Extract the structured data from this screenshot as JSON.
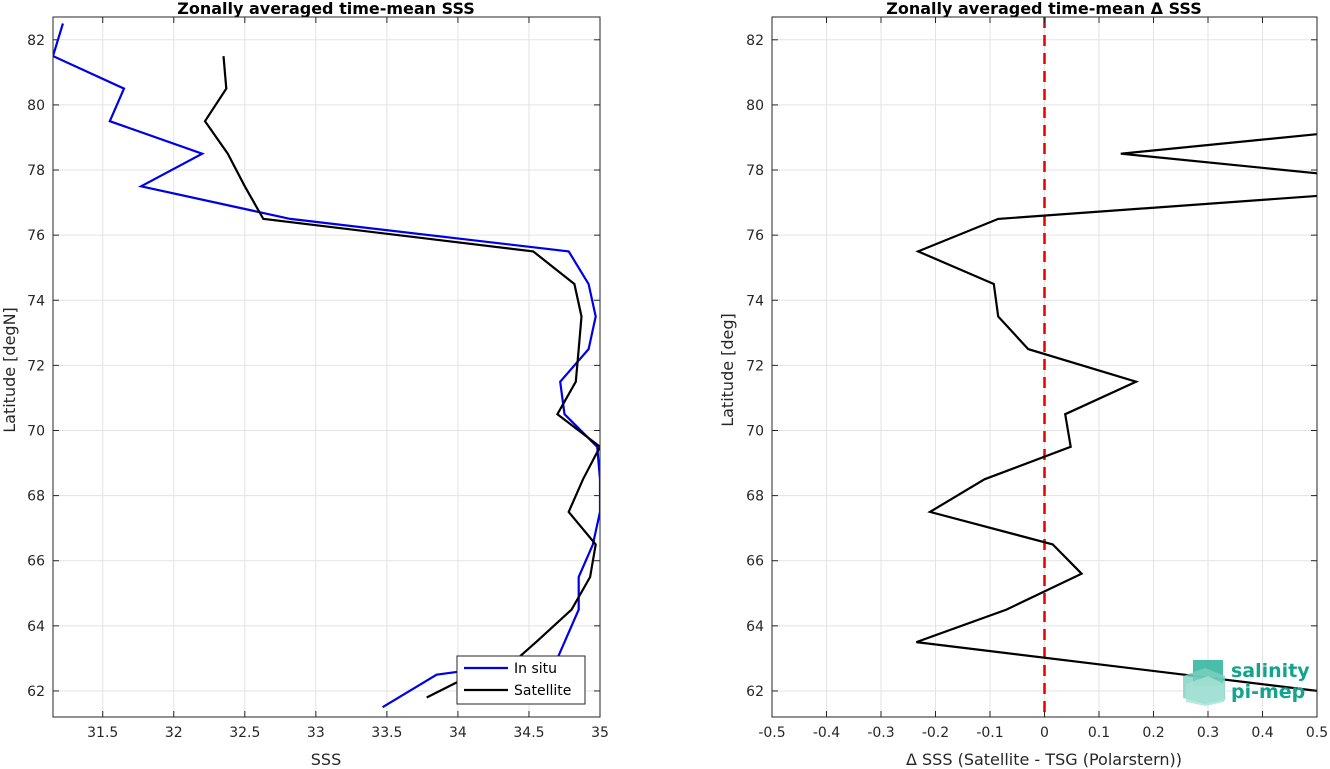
{
  "chart_data": [
    {
      "type": "line",
      "title": "Zonally averaged time-mean SSS",
      "xlabel": "SSS",
      "ylabel": "Latitude [degN]",
      "xlim": [
        31.15,
        35.0
      ],
      "ylim": [
        61.2,
        82.7
      ],
      "xticks": [
        "31.5",
        "32",
        "32.5",
        "33",
        "33.5",
        "34",
        "34.5",
        "35"
      ],
      "yticks": [
        "62",
        "64",
        "66",
        "68",
        "70",
        "72",
        "74",
        "76",
        "78",
        "80",
        "82"
      ],
      "grid": true,
      "legend": "bottom-right",
      "series": [
        {
          "name": "In situ",
          "color": "#0000e6",
          "points": [
            [
              33.47,
              61.5
            ],
            [
              33.85,
              62.5
            ],
            [
              34.7,
              63.0
            ],
            [
              34.85,
              64.5
            ],
            [
              34.85,
              65.5
            ],
            [
              34.95,
              66.5
            ],
            [
              35.0,
              67.5
            ],
            [
              35.0,
              68.5
            ],
            [
              34.98,
              69.5
            ],
            [
              34.75,
              70.5
            ],
            [
              34.72,
              71.5
            ],
            [
              34.92,
              72.5
            ],
            [
              34.97,
              73.5
            ],
            [
              34.92,
              74.5
            ],
            [
              34.78,
              75.5
            ],
            [
              32.82,
              76.5
            ],
            [
              31.77,
              77.5
            ],
            [
              32.2,
              78.5
            ],
            [
              31.55,
              79.5
            ],
            [
              31.65,
              80.5
            ],
            [
              31.15,
              81.5
            ],
            [
              31.22,
              82.5
            ]
          ]
        },
        {
          "name": "Satellite",
          "color": "#000000",
          "points": [
            [
              33.78,
              61.8
            ],
            [
              34.1,
              62.5
            ],
            [
              34.42,
              63.0
            ],
            [
              34.55,
              63.5
            ],
            [
              34.8,
              64.5
            ],
            [
              34.93,
              65.5
            ],
            [
              34.97,
              66.5
            ],
            [
              34.78,
              67.5
            ],
            [
              34.88,
              68.5
            ],
            [
              35.0,
              69.5
            ],
            [
              34.7,
              70.5
            ],
            [
              34.83,
              71.5
            ],
            [
              34.85,
              72.5
            ],
            [
              34.87,
              73.5
            ],
            [
              34.82,
              74.5
            ],
            [
              34.53,
              75.5
            ],
            [
              32.63,
              76.5
            ],
            [
              32.5,
              77.5
            ],
            [
              32.38,
              78.5
            ],
            [
              32.22,
              79.5
            ],
            [
              32.37,
              80.5
            ],
            [
              32.35,
              81.5
            ]
          ]
        }
      ]
    },
    {
      "type": "line",
      "title": "Zonally averaged time-mean Δ SSS",
      "xlabel": "Δ SSS (Satellite - TSG (Polarstern))",
      "ylabel": "Latitude [deg]",
      "xlim": [
        -0.5,
        0.5
      ],
      "ylim": [
        61.2,
        82.7
      ],
      "xticks": [
        "-0.5",
        "-0.4",
        "-0.3",
        "-0.2",
        "-0.1",
        "0",
        "0.1",
        "0.2",
        "0.3",
        "0.4",
        "0.5"
      ],
      "yticks": [
        "62",
        "64",
        "66",
        "68",
        "70",
        "72",
        "74",
        "76",
        "78",
        "80",
        "82"
      ],
      "grid": true,
      "reference_line": {
        "x": 0,
        "color": "#e60000",
        "style": "dashed"
      },
      "series": [
        {
          "color": "#000000",
          "points": [
            [
              0.6,
              61.8
            ],
            [
              -0.235,
              63.5
            ],
            [
              -0.07,
              64.5
            ],
            [
              0.068,
              65.6
            ],
            [
              0.015,
              66.5
            ],
            [
              -0.21,
              67.5
            ],
            [
              -0.11,
              68.5
            ],
            [
              0.048,
              69.5
            ],
            [
              0.038,
              70.5
            ],
            [
              0.168,
              71.5
            ],
            [
              -0.03,
              72.5
            ],
            [
              -0.085,
              73.5
            ],
            [
              -0.093,
              74.5
            ],
            [
              -0.232,
              75.5
            ],
            [
              -0.085,
              76.5
            ],
            [
              0.58,
              77.3
            ],
            [
              0.5,
              77.9
            ],
            [
              0.14,
              78.5
            ],
            [
              0.5,
              79.1
            ],
            [
              0.6,
              79.4
            ]
          ]
        }
      ]
    }
  ],
  "logo": {
    "line1": "salinity",
    "line2": "pi-mep",
    "color": "#16a38e"
  }
}
